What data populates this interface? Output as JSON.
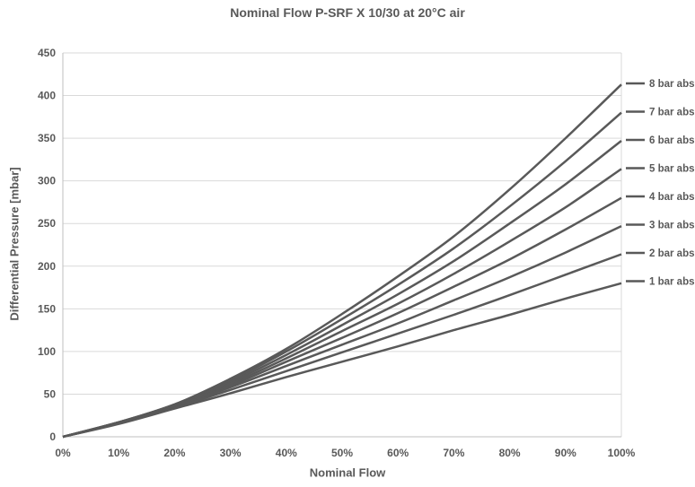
{
  "chart_data": {
    "type": "line",
    "title": "Nominal Flow P-SRF X 10/30 at 20°C air",
    "xlabel": "Nominal Flow",
    "ylabel": "Differential Pressure [mbar]",
    "x": [
      0,
      10,
      20,
      30,
      40,
      50,
      60,
      70,
      80,
      90,
      100
    ],
    "x_tick_labels": [
      "0%",
      "10%",
      "20%",
      "30%",
      "40%",
      "50%",
      "60%",
      "70%",
      "80%",
      "90%",
      "100%"
    ],
    "xlim": [
      0,
      100
    ],
    "y_ticks": [
      0,
      50,
      100,
      150,
      200,
      250,
      300,
      350,
      400,
      450
    ],
    "ylim": [
      0,
      450
    ],
    "grid": "horizontal",
    "legend_placement": "right",
    "line_color": "#595959",
    "series": [
      {
        "name": "8 bar abs",
        "values": [
          0,
          17,
          38,
          68,
          103,
          144,
          188,
          235,
          290,
          350,
          413
        ]
      },
      {
        "name": "7 bar abs",
        "values": [
          0,
          17,
          38,
          66,
          100,
          138,
          178,
          221,
          270,
          323,
          380
        ]
      },
      {
        "name": "6 bar abs",
        "values": [
          0,
          17,
          37,
          64,
          96,
          131,
          167,
          206,
          250,
          296,
          347
        ]
      },
      {
        "name": "5 bar abs",
        "values": [
          0,
          17,
          37,
          62,
          92,
          124,
          156,
          191,
          229,
          269,
          314
        ]
      },
      {
        "name": "4 bar abs",
        "values": [
          0,
          16,
          36,
          60,
          88,
          116,
          145,
          176,
          208,
          243,
          280
        ]
      },
      {
        "name": "3 bar abs",
        "values": [
          0,
          16,
          35,
          58,
          83,
          108,
          133,
          160,
          187,
          216,
          247
        ]
      },
      {
        "name": "2 bar abs",
        "values": [
          0,
          16,
          34,
          55,
          77,
          99,
          121,
          143,
          166,
          190,
          214
        ]
      },
      {
        "name": "1 bar abs",
        "values": [
          0,
          15,
          33,
          51,
          70,
          88,
          106,
          125,
          143,
          162,
          180
        ]
      }
    ]
  }
}
